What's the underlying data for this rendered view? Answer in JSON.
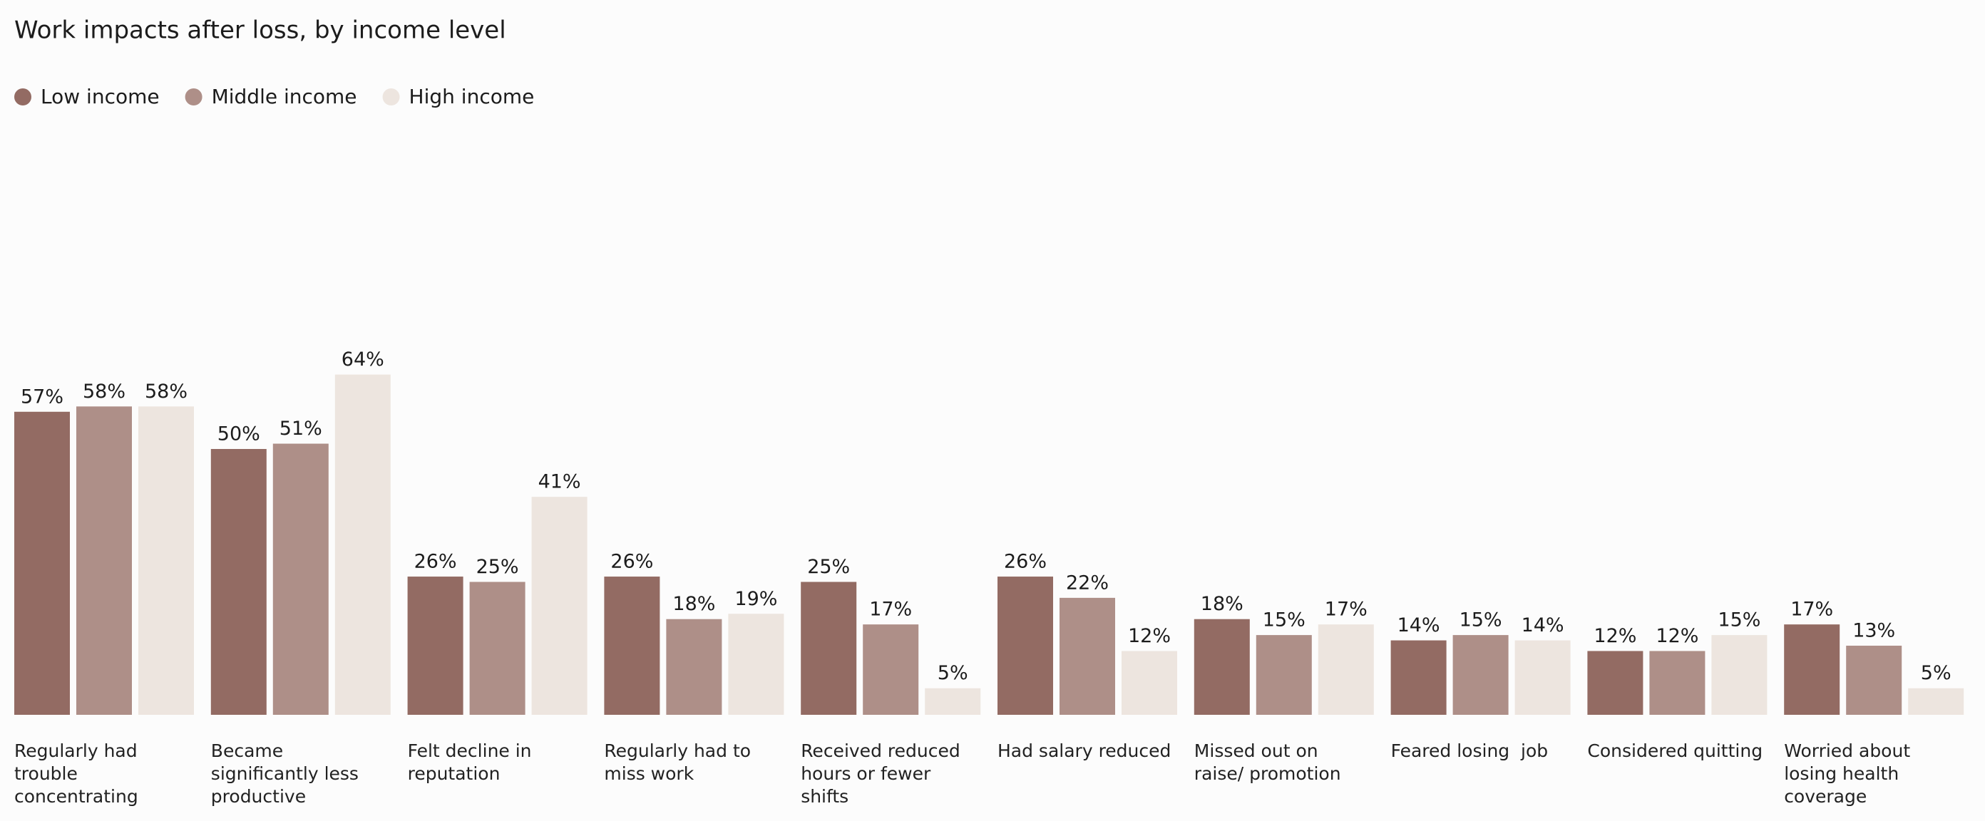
{
  "chart_data": {
    "type": "bar",
    "title": "Work impacts after loss, by income level",
    "categories": [
      "Regularly had trouble concentrating",
      "Became significantly less productive",
      "Felt decline in reputation",
      "Regularly had to miss work",
      "Received reduced hours or fewer shifts",
      "Had salary reduced",
      "Missed out on raise/ promotion",
      "Feared losing  job",
      "Considered quitting",
      "Worried about losing health coverage"
    ],
    "series": [
      {
        "name": "Low income",
        "color": "#936b63",
        "values": [
          57,
          50,
          26,
          26,
          25,
          26,
          18,
          14,
          12,
          17
        ],
        "value_labels": [
          "57%",
          "50%",
          "26%",
          "26%",
          "25%",
          "26%",
          "18%",
          "14%",
          "12%",
          "17%"
        ]
      },
      {
        "name": "Middle income",
        "color": "#ae8f88",
        "values": [
          58,
          51,
          25,
          18,
          17,
          22,
          15,
          15,
          12,
          13
        ],
        "value_labels": [
          "58%",
          "51%",
          "25%",
          "18%",
          "17%",
          "22%",
          "15%",
          "15%",
          "12%",
          "13%"
        ]
      },
      {
        "name": "High income",
        "color": "#ede5df",
        "values": [
          58,
          64,
          41,
          19,
          5,
          12,
          17,
          14,
          15,
          5
        ],
        "value_labels": [
          "58%",
          "64%",
          "41%",
          "19%",
          "5%",
          "12%",
          "17%",
          "14%",
          "15%",
          "5%"
        ]
      }
    ],
    "legend": "top-left"
  }
}
